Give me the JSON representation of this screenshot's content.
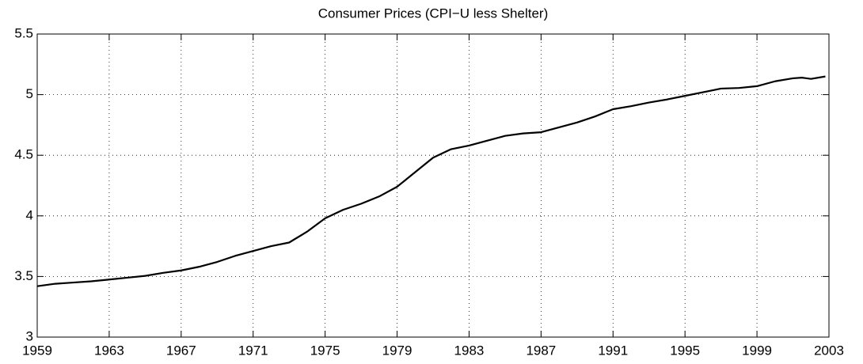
{
  "chart_data": {
    "type": "line",
    "title": "Consumer Prices (CPI−U less Shelter)",
    "x": [
      1959,
      1960,
      1961,
      1962,
      1963,
      1964,
      1965,
      1966,
      1967,
      1968,
      1969,
      1970,
      1971,
      1972,
      1973,
      1974,
      1975,
      1976,
      1977,
      1978,
      1979,
      1980,
      1981,
      1982,
      1983,
      1984,
      1985,
      1986,
      1987,
      1988,
      1989,
      1990,
      1991,
      1992,
      1993,
      1994,
      1995,
      1996,
      1997,
      1998,
      1999,
      2000,
      2001,
      2001.5,
      2002,
      2002.8
    ],
    "values": [
      3.42,
      3.44,
      3.45,
      3.46,
      3.475,
      3.49,
      3.505,
      3.53,
      3.55,
      3.58,
      3.62,
      3.67,
      3.71,
      3.75,
      3.78,
      3.87,
      3.98,
      4.05,
      4.1,
      4.16,
      4.24,
      4.36,
      4.48,
      4.55,
      4.58,
      4.62,
      4.66,
      4.68,
      4.69,
      4.73,
      4.77,
      4.82,
      4.88,
      4.905,
      4.935,
      4.96,
      4.99,
      5.02,
      5.05,
      5.055,
      5.07,
      5.11,
      5.135,
      5.14,
      5.13,
      5.15
    ],
    "color": "#000000",
    "xlim": [
      1959,
      2003
    ],
    "xticks": [
      1959,
      1963,
      1967,
      1971,
      1975,
      1979,
      1983,
      1987,
      1991,
      1995,
      1999,
      2003
    ],
    "ylim": [
      3,
      5.5
    ],
    "yticks": [
      3,
      3.5,
      4,
      4.5,
      5,
      5.5
    ],
    "grid": true
  }
}
